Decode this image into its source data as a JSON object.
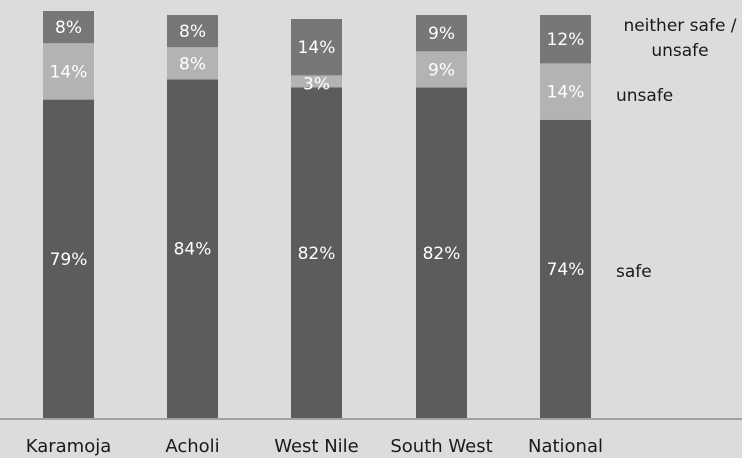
{
  "chart_data": {
    "type": "bar",
    "stacked": true,
    "categories": [
      "Karamoja",
      "Acholi",
      "West Nile",
      "South West",
      "National"
    ],
    "series": [
      {
        "name": "safe",
        "values": [
          79,
          84,
          82,
          82,
          74
        ],
        "labels": [
          "79%",
          "84%",
          "82%",
          "82%",
          "74%"
        ],
        "color": "#5c5c5c"
      },
      {
        "name": "unsafe",
        "values": [
          14,
          8,
          3,
          9,
          14
        ],
        "labels": [
          "14%",
          "8%",
          "3%",
          "9%",
          "14%"
        ],
        "color": "#b3b3b3"
      },
      {
        "name": "neither safe / unsafe",
        "values": [
          8,
          8,
          14,
          9,
          12
        ],
        "labels": [
          "8%",
          "8%",
          "14%",
          "9%",
          "12%"
        ],
        "color": "#777777"
      }
    ],
    "legend": [
      {
        "series": "neither safe / unsafe",
        "lines": [
          "neither safe /",
          "unsafe"
        ]
      },
      {
        "series": "unsafe",
        "lines": [
          "unsafe"
        ]
      },
      {
        "series": "safe",
        "lines": [
          "safe"
        ]
      }
    ],
    "legend_position": "right, inline with National bar segments",
    "ylim": [
      0,
      100
    ],
    "grid": false,
    "background": "#dcdcdc",
    "axis_color": "#8c8c8c"
  }
}
